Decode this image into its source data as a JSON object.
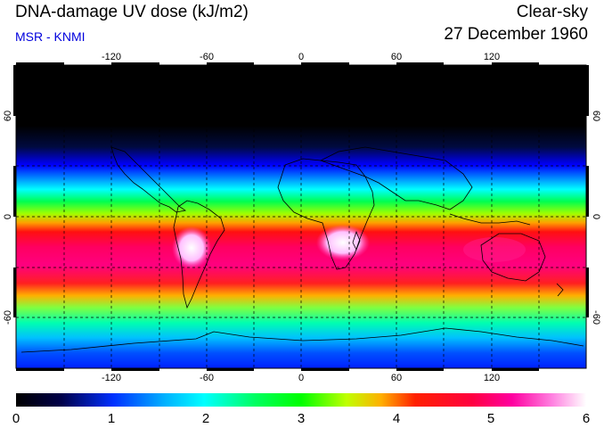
{
  "header": {
    "title": "DNA-damage UV dose (kJ/m2)",
    "source": "MSR - KNMI",
    "condition": "Clear-sky",
    "date": "27 December 1960"
  },
  "map": {
    "lon_ticks": [
      "-120",
      "-60",
      "0",
      "60",
      "120"
    ],
    "lat_ticks": [
      "60",
      "0",
      "-60"
    ],
    "colors": {
      "dose_0": "#000000",
      "dose_1": "#0030ff",
      "dose_2": "#00ffff",
      "dose_3": "#00ff00",
      "dose_4": "#ff0000",
      "dose_5": "#ff00a0",
      "dose_6": "#ffffff"
    }
  },
  "colorbar": {
    "labels": [
      "0",
      "1",
      "2",
      "3",
      "4",
      "5",
      "6"
    ],
    "min": 0,
    "max": 6
  }
}
